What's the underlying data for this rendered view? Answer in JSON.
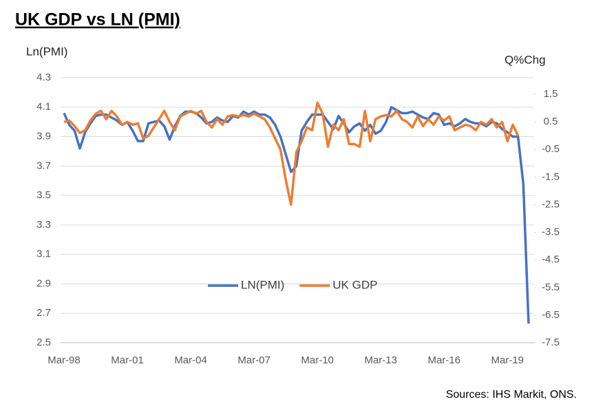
{
  "chart_data": {
    "type": "line",
    "title": "UK GDP vs LN (PMI)",
    "y_label": "Ln(PMI)",
    "y2_label": "Q%Chg",
    "source": "Sources: IHS Markit, ONS.",
    "categories": [
      "Mar-98",
      null,
      null,
      null,
      null,
      null,
      null,
      null,
      null,
      null,
      null,
      null,
      "Mar-01",
      null,
      null,
      null,
      null,
      null,
      null,
      null,
      null,
      null,
      null,
      null,
      "Mar-04",
      null,
      null,
      null,
      null,
      null,
      null,
      null,
      null,
      null,
      null,
      null,
      "Mar-07",
      null,
      null,
      null,
      null,
      null,
      null,
      null,
      null,
      null,
      null,
      null,
      "Mar-10",
      null,
      null,
      null,
      null,
      null,
      null,
      null,
      null,
      null,
      null,
      null,
      "Mar-13",
      null,
      null,
      null,
      null,
      null,
      null,
      null,
      null,
      null,
      null,
      null,
      "Mar-16",
      null,
      null,
      null,
      null,
      null,
      null,
      null,
      null,
      null,
      null,
      null,
      "Mar-19",
      null,
      null,
      null,
      null
    ],
    "series": [
      {
        "name": "LN(PMI)",
        "color": "#4472c4",
        "axis": "y",
        "values": [
          4.06,
          3.98,
          3.94,
          3.82,
          3.93,
          3.99,
          4.04,
          4.05,
          4.05,
          4.03,
          4.01,
          3.98,
          4.0,
          3.94,
          3.87,
          3.87,
          3.99,
          4.0,
          4.01,
          3.97,
          3.88,
          3.97,
          4.04,
          4.07,
          4.07,
          4.06,
          4.03,
          3.99,
          4.0,
          4.03,
          4.01,
          4.0,
          4.04,
          4.03,
          4.07,
          4.05,
          4.07,
          4.05,
          4.05,
          4.03,
          3.98,
          3.9,
          3.78,
          3.66,
          3.7,
          3.94,
          4.0,
          4.05,
          4.05,
          4.05,
          4.0,
          3.95,
          4.04,
          3.99,
          3.93,
          3.97,
          3.99,
          3.94,
          3.98,
          3.92,
          3.94,
          4.0,
          4.1,
          4.08,
          4.06,
          4.06,
          4.07,
          4.05,
          4.03,
          4.02,
          4.06,
          4.05,
          3.98,
          3.99,
          3.97,
          3.99,
          4.02,
          4.0,
          3.99,
          3.99,
          3.97,
          4.0,
          3.99,
          3.95,
          3.93,
          3.9,
          3.9,
          3.58,
          2.63
        ]
      },
      {
        "name": "UK GDP",
        "color": "#ed7d31",
        "axis": "y2",
        "values": [
          0.5,
          0.55,
          0.35,
          0.1,
          0.2,
          0.55,
          0.8,
          0.9,
          0.6,
          0.9,
          0.7,
          0.4,
          0.5,
          0.4,
          0.45,
          -0.1,
          0.0,
          0.3,
          0.6,
          0.9,
          0.5,
          0.2,
          0.7,
          0.8,
          0.9,
          0.8,
          0.9,
          0.5,
          0.3,
          0.6,
          0.4,
          0.7,
          0.75,
          0.7,
          0.75,
          0.7,
          0.8,
          0.7,
          0.6,
          0.3,
          -0.1,
          -0.5,
          -1.6,
          -2.5,
          -0.6,
          -0.2,
          0.3,
          0.2,
          1.2,
          0.8,
          -0.4,
          0.4,
          0.2,
          0.6,
          -0.3,
          -0.3,
          -0.4,
          0.9,
          -0.2,
          0.6,
          0.7,
          0.75,
          0.7,
          0.9,
          0.6,
          0.5,
          0.3,
          0.7,
          0.35,
          0.6,
          0.4,
          0.7,
          0.55,
          0.7,
          0.2,
          0.3,
          0.4,
          0.35,
          0.2,
          0.5,
          0.4,
          0.6,
          0.3,
          0.5,
          -0.2,
          0.4,
          0.0,
          null,
          null
        ]
      }
    ],
    "ylim": [
      2.5,
      4.3
    ],
    "yticks": [
      4.3,
      4.1,
      3.9,
      3.7,
      3.5,
      3.3,
      3.1,
      2.9,
      2.7,
      2.5
    ],
    "y2lim": [
      -7.5,
      2.1
    ],
    "y2ticks": [
      1.5,
      0.5,
      -0.5,
      -1.5,
      -2.5,
      -3.5,
      -4.5,
      -5.5,
      -6.5,
      -7.5
    ],
    "grid": true,
    "legend_position": "center"
  }
}
